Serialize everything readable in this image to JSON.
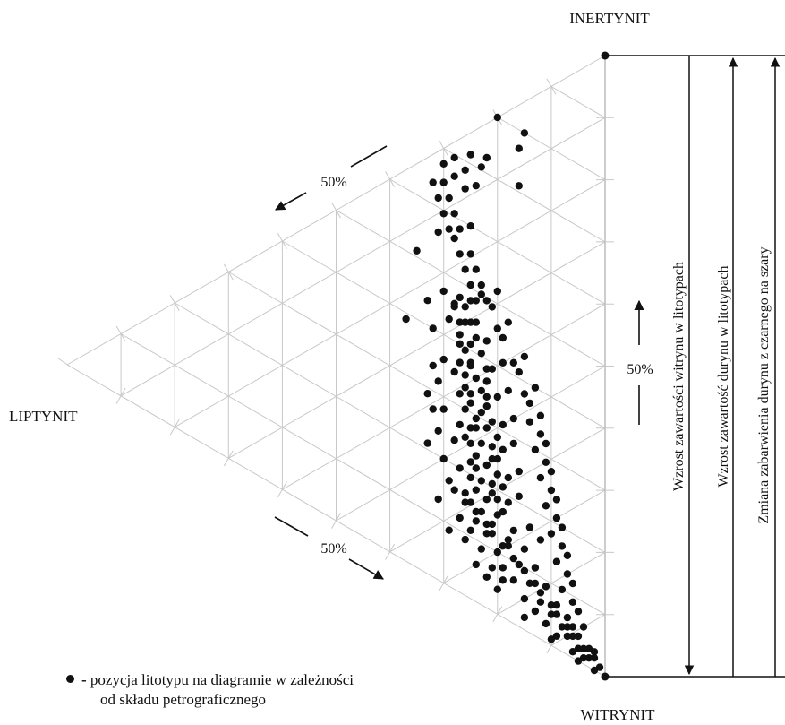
{
  "vertices": {
    "top": "INERTYNIT",
    "left": "LIPTYNIT",
    "bottom": "WITRYNIT"
  },
  "percent_labels": {
    "upper_left": "50%",
    "lower_left": "50%",
    "right": "50%"
  },
  "vertical_arrows": [
    {
      "text": "Wzrost zawartości witrynu w litotypach",
      "direction": "down"
    },
    {
      "text": "Wzrost zawartość durynu w litotypach",
      "direction": "up"
    },
    {
      "text": "Zmiana zabarwienia durynu z czarnego na szary",
      "direction": "up"
    }
  ],
  "legend": {
    "dash": "-",
    "line1": "pozycja litotypu na diagramie w zależności",
    "line2": "od składu petrograficznego"
  },
  "colors": {
    "ink": "#111111",
    "grid": "#c8c8c8"
  },
  "points": [
    [
      0.8,
      0.2
    ],
    [
      0.8,
      0.15
    ],
    [
      0.77,
      0.16
    ],
    [
      0.67,
      0.24
    ],
    [
      0.6,
      0.25
    ],
    [
      0.56,
      0.31
    ],
    [
      0.71,
      0.16
    ],
    [
      0.17,
      0.14
    ],
    [
      0.13,
      0.18
    ],
    [
      0.16,
      0.12
    ],
    [
      0.51,
      0.35
    ],
    [
      0.39,
      0.37
    ],
    [
      0.29,
      0.33
    ],
    [
      0.47,
      0.3
    ],
    [
      0.44,
      0.26
    ],
    [
      0.43,
      0.29
    ],
    [
      0.41,
      0.25
    ],
    [
      0.4,
      0.27
    ],
    [
      0.38,
      0.25
    ],
    [
      0.37,
      0.27
    ],
    [
      0.36,
      0.24
    ],
    [
      0.35,
      0.28
    ],
    [
      0.34,
      0.22
    ],
    [
      0.33,
      0.25
    ],
    [
      0.32,
      0.27
    ],
    [
      0.31,
      0.23
    ],
    [
      0.3,
      0.26
    ],
    [
      0.29,
      0.22
    ],
    [
      0.28,
      0.24
    ],
    [
      0.27,
      0.27
    ],
    [
      0.26,
      0.23
    ],
    [
      0.25,
      0.2
    ],
    [
      0.25,
      0.25
    ],
    [
      0.24,
      0.28
    ],
    [
      0.23,
      0.22
    ],
    [
      0.22,
      0.25
    ],
    [
      0.21,
      0.19
    ],
    [
      0.2,
      0.23
    ],
    [
      0.2,
      0.27
    ],
    [
      0.19,
      0.21
    ],
    [
      0.18,
      0.24
    ],
    [
      0.17,
      0.29
    ],
    [
      0.16,
      0.2
    ],
    [
      0.15,
      0.23
    ],
    [
      0.15,
      0.26
    ],
    [
      0.14,
      0.21
    ],
    [
      0.13,
      0.24
    ],
    [
      0.12,
      0.18
    ],
    [
      0.12,
      0.22
    ],
    [
      0.11,
      0.25
    ],
    [
      0.1,
      0.2
    ],
    [
      0.1,
      0.16
    ],
    [
      0.09,
      0.23
    ],
    [
      0.08,
      0.19
    ],
    [
      0.08,
      0.14
    ],
    [
      0.07,
      0.21
    ],
    [
      0.07,
      0.17
    ],
    [
      0.06,
      0.12
    ],
    [
      0.06,
      0.19
    ],
    [
      0.05,
      0.15
    ],
    [
      0.05,
      0.1
    ],
    [
      0.04,
      0.13
    ],
    [
      0.04,
      0.08
    ],
    [
      0.03,
      0.11
    ],
    [
      0.03,
      0.07
    ],
    [
      0.02,
      0.05
    ],
    [
      0.02,
      0.09
    ],
    [
      0.01,
      0.04
    ],
    [
      0.01,
      0.06
    ],
    [
      0.0,
      0.02
    ],
    [
      0.0,
      0.05
    ],
    [
      0.03,
      0.03
    ],
    [
      0.05,
      0.06
    ],
    [
      0.07,
      0.09
    ],
    [
      0.09,
      0.11
    ],
    [
      0.11,
      0.13
    ],
    [
      0.13,
      0.15
    ],
    [
      0.15,
      0.17
    ],
    [
      0.17,
      0.19
    ],
    [
      0.19,
      0.18
    ],
    [
      0.21,
      0.16
    ],
    [
      0.23,
      0.18
    ],
    [
      0.25,
      0.16
    ],
    [
      0.27,
      0.19
    ],
    [
      0.29,
      0.17
    ],
    [
      0.31,
      0.19
    ],
    [
      0.33,
      0.17
    ],
    [
      0.35,
      0.2
    ],
    [
      0.37,
      0.18
    ],
    [
      0.39,
      0.21
    ],
    [
      0.41,
      0.19
    ],
    [
      0.43,
      0.22
    ],
    [
      0.45,
      0.24
    ],
    [
      0.46,
      0.2
    ],
    [
      0.42,
      0.17
    ],
    [
      0.38,
      0.15
    ],
    [
      0.34,
      0.14
    ],
    [
      0.3,
      0.13
    ],
    [
      0.26,
      0.12
    ],
    [
      0.22,
      0.11
    ],
    [
      0.18,
      0.1
    ],
    [
      0.14,
      0.09
    ],
    [
      0.1,
      0.08
    ],
    [
      0.06,
      0.07
    ],
    [
      0.04,
      0.05
    ],
    [
      0.08,
      0.05
    ],
    [
      0.12,
      0.06
    ],
    [
      0.16,
      0.07
    ],
    [
      0.2,
      0.08
    ],
    [
      0.24,
      0.09
    ],
    [
      0.28,
      0.1
    ],
    [
      0.32,
      0.11
    ],
    [
      0.36,
      0.12
    ],
    [
      0.4,
      0.13
    ],
    [
      0.44,
      0.15
    ],
    [
      0.48,
      0.18
    ],
    [
      0.36,
      0.3
    ],
    [
      0.32,
      0.31
    ],
    [
      0.28,
      0.3
    ],
    [
      0.24,
      0.31
    ],
    [
      0.2,
      0.3
    ],
    [
      0.16,
      0.28
    ],
    [
      0.12,
      0.27
    ],
    [
      0.09,
      0.26
    ],
    [
      0.06,
      0.24
    ],
    [
      0.04,
      0.2
    ],
    [
      0.02,
      0.15
    ],
    [
      0.01,
      0.1
    ],
    [
      0.05,
      0.22
    ],
    [
      0.09,
      0.29
    ],
    [
      0.13,
      0.31
    ],
    [
      0.21,
      0.33
    ],
    [
      0.27,
      0.32
    ],
    [
      0.34,
      0.32
    ],
    [
      0.4,
      0.32
    ],
    [
      0.44,
      0.33
    ],
    [
      0.46,
      0.28
    ],
    [
      0.48,
      0.25
    ],
    [
      0.5,
      0.23
    ],
    [
      0.52,
      0.2
    ],
    [
      0.49,
      0.21
    ],
    [
      0.45,
      0.19
    ],
    [
      0.41,
      0.16
    ],
    [
      0.37,
      0.14
    ],
    [
      0.33,
      0.12
    ],
    [
      0.29,
      0.11
    ],
    [
      0.25,
      0.1
    ],
    [
      0.21,
      0.09
    ],
    [
      0.17,
      0.08
    ],
    [
      0.13,
      0.07
    ],
    [
      0.09,
      0.06
    ],
    [
      0.06,
      0.04
    ],
    [
      0.03,
      0.02
    ],
    [
      0.02,
      0.02
    ],
    [
      0.01,
      0.01
    ],
    [
      0.015,
      0.03
    ],
    [
      0.025,
      0.04
    ],
    [
      0.035,
      0.06
    ],
    [
      0.045,
      0.07
    ],
    [
      0.055,
      0.09
    ],
    [
      0.065,
      0.1
    ],
    [
      0.075,
      0.12
    ],
    [
      0.085,
      0.13
    ],
    [
      0.095,
      0.15
    ],
    [
      0.105,
      0.17
    ],
    [
      0.115,
      0.19
    ],
    [
      0.125,
      0.21
    ],
    [
      0.135,
      0.22
    ],
    [
      0.145,
      0.24
    ],
    [
      0.155,
      0.25
    ],
    [
      0.165,
      0.26
    ],
    [
      0.175,
      0.22
    ],
    [
      0.185,
      0.2
    ],
    [
      0.195,
      0.25
    ],
    [
      0.205,
      0.21
    ],
    [
      0.215,
      0.24
    ],
    [
      0.225,
      0.2
    ],
    [
      0.235,
      0.24
    ],
    [
      0.245,
      0.21
    ],
    [
      0.255,
      0.26
    ],
    [
      0.265,
      0.21
    ],
    [
      0.275,
      0.25
    ],
    [
      0.285,
      0.2
    ],
    [
      0.295,
      0.24
    ],
    [
      0.305,
      0.21
    ],
    [
      0.315,
      0.25
    ],
    [
      0.325,
      0.22
    ],
    [
      0.335,
      0.26
    ],
    [
      0.345,
      0.23
    ],
    [
      0.355,
      0.26
    ],
    [
      0.365,
      0.22
    ],
    [
      0.375,
      0.25
    ],
    [
      0.385,
      0.22
    ],
    [
      0.395,
      0.26
    ],
    [
      0.405,
      0.23
    ],
    [
      0.415,
      0.27
    ],
    [
      0.425,
      0.24
    ],
    [
      0.435,
      0.27
    ],
    [
      0.445,
      0.25
    ],
    [
      0.455,
      0.28
    ],
    [
      0.465,
      0.26
    ],
    [
      0.475,
      0.27
    ],
    [
      0.485,
      0.24
    ],
    [
      0.495,
      0.22
    ],
    [
      0.505,
      0.25
    ],
    [
      0.515,
      0.23
    ],
    [
      0.525,
      0.26
    ],
    [
      0.535,
      0.24
    ],
    [
      0.545,
      0.27
    ],
    [
      0.555,
      0.25
    ],
    [
      0.565,
      0.28
    ],
    [
      0.575,
      0.29
    ],
    [
      0.585,
      0.27
    ],
    [
      0.595,
      0.3
    ],
    [
      0.605,
      0.28
    ],
    [
      0.615,
      0.31
    ],
    [
      0.625,
      0.29
    ],
    [
      0.635,
      0.32
    ],
    [
      0.645,
      0.3
    ],
    [
      0.655,
      0.26
    ],
    [
      0.665,
      0.28
    ],
    [
      0.675,
      0.3
    ],
    [
      0.685,
      0.26
    ],
    [
      0.695,
      0.28
    ],
    [
      0.705,
      0.23
    ],
    [
      0.715,
      0.25
    ],
    [
      0.725,
      0.22
    ]
  ]
}
